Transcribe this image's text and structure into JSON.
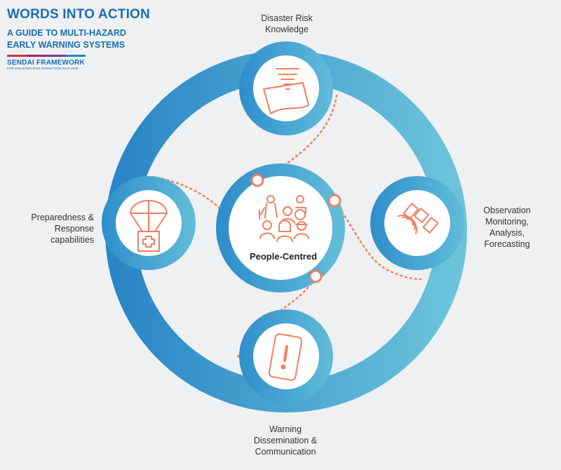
{
  "header": {
    "title": "WORDS INTO ACTION",
    "subtitle": "A GUIDE TO MULTI-HAZARD EARLY WARNING SYSTEMS",
    "framework_name": "SENDAI FRAMEWORK",
    "framework_tagline": "FOR DISASTER RISK REDUCTION 2015-2030",
    "stripe_colors": [
      "#d62d3a",
      "#9e2a5c",
      "#7b3f98",
      "#1e88c8"
    ]
  },
  "pillars": {
    "top": {
      "label": "Disaster Risk Knowledge",
      "icon": "tornado-map-icon"
    },
    "right": {
      "label": "Observation Monitoring, Analysis, Forecasting",
      "icon": "satellite-icon"
    },
    "bottom": {
      "label": "Warning Dissemination & Communication",
      "icon": "phone-alert-icon"
    },
    "left": {
      "label": "Preparedness & Response capabilities",
      "icon": "parachute-aid-icon"
    }
  },
  "center": {
    "label": "People-Centred",
    "icon": "people-group-icon"
  },
  "colors": {
    "ring_dark": "#2a86c6",
    "ring_light": "#6cc3db",
    "icon_stroke": "#ee8060",
    "dotted_path": "#ee8060",
    "background": "#eef0f2"
  }
}
